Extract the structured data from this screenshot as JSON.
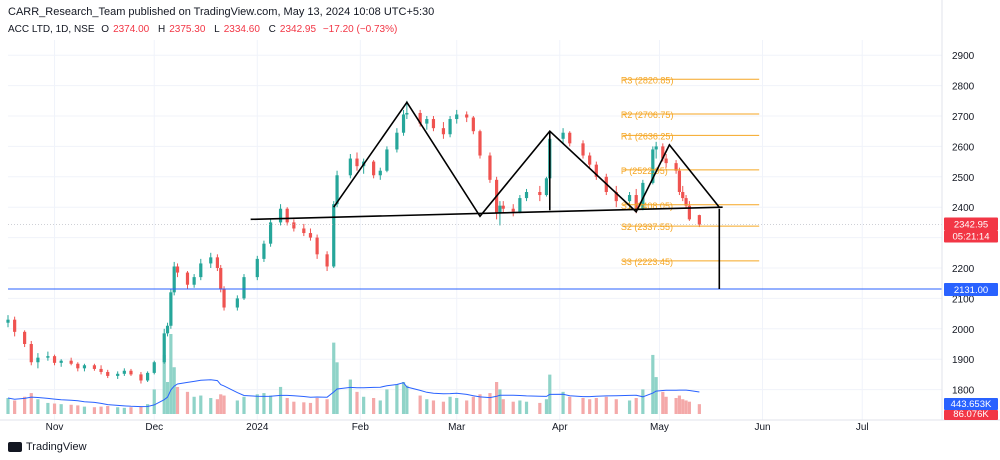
{
  "header": {
    "publisher": "CARR_Research_Team published on TradingView.com, May 13, 2024 10:08 UTC+5:30",
    "symbol": "ACC LTD, 1D, NSE",
    "o_label": "O",
    "o_value": "2374.00",
    "h_label": "H",
    "h_value": "2375.30",
    "l_label": "L",
    "l_value": "2334.60",
    "c_label": "C",
    "c_value": "2342.95",
    "change": "−17.20 (−0.73%)"
  },
  "footer": {
    "brand": "TradingView"
  },
  "colors": {
    "up": "#26a69a",
    "down": "#ef5350",
    "vol_up": "#8fd3c8",
    "vol_down": "#f4a9a9",
    "pivot": "#f5a623",
    "support": "#2962ff",
    "price_tag": "#f23645"
  },
  "chart_data": {
    "type": "candlestick",
    "ylim": [
      1700,
      2950
    ],
    "y_ticks": [
      1800,
      1900,
      2000,
      2100,
      2200,
      2300,
      2400,
      2500,
      2600,
      2700,
      2800,
      2900
    ],
    "x_tick_labels": [
      "Nov",
      "Dec",
      "2024",
      "Feb",
      "Mar",
      "Apr",
      "May",
      "Jun",
      "Jul"
    ],
    "x_tick_dates": [
      "2023-11-01",
      "2023-12-01",
      "2024-01-01",
      "2024-02-01",
      "2024-03-01",
      "2024-04-01",
      "2024-05-01",
      "2024-06-01",
      "2024-07-01"
    ],
    "x_range": [
      "2023-10-18",
      "2024-07-25"
    ],
    "last_price_label": "2342.95",
    "countdown_label": "05:21:14",
    "support_level": 2131.0,
    "support_label": "2131.00",
    "volume_label": "443.653K",
    "volume_ma_label": "86.076K",
    "pivots": [
      {
        "name": "R3",
        "label": "R3 (2820.85)",
        "value": 2820.85
      },
      {
        "name": "R2",
        "label": "R2 (2706.75)",
        "value": 2706.75
      },
      {
        "name": "R1",
        "label": "R1 (2636.25)",
        "value": 2636.25
      },
      {
        "name": "P",
        "label": "P (2522.95)",
        "value": 2522.95
      },
      {
        "name": "S1",
        "label": "S1 (2408.05)",
        "value": 2408.05
      },
      {
        "name": "S2",
        "label": "S2 (2337.55)",
        "value": 2337.55
      },
      {
        "name": "S3",
        "label": "S3 (2223.45)",
        "value": 2223.45
      }
    ],
    "pivot_range": [
      "2024-04-20",
      "2024-05-31"
    ],
    "neckline": [
      {
        "x": "2023-12-30",
        "y": 2360
      },
      {
        "x": "2024-05-20",
        "y": 2400
      }
    ],
    "pattern_line": [
      {
        "x": "2024-01-24",
        "y": 2400
      },
      {
        "x": "2024-02-15",
        "y": 2745
      },
      {
        "x": "2024-03-08",
        "y": 2370
      },
      {
        "x": "2024-03-29",
        "y": 2650
      },
      {
        "x": "2024-04-24",
        "y": 2385
      },
      {
        "x": "2024-05-04",
        "y": 2605
      },
      {
        "x": "2024-05-19",
        "y": 2400
      }
    ],
    "vertical_measures": [
      {
        "x": "2024-03-29",
        "y_top": 2650,
        "y_bottom": 2390
      },
      {
        "x": "2024-05-19",
        "y_top": 2395,
        "y_bottom": 2131
      }
    ],
    "series": [
      {
        "name": "ACC LTD",
        "kind": "ohlc",
        "points": [
          {
            "d": "2023-10-18",
            "o": 2020,
            "h": 2045,
            "l": 2005,
            "c": 2030,
            "v": 130
          },
          {
            "d": "2023-10-20",
            "o": 2030,
            "h": 2040,
            "l": 1975,
            "c": 1990,
            "v": 110
          },
          {
            "d": "2023-10-23",
            "o": 1990,
            "h": 1995,
            "l": 1940,
            "c": 1950,
            "v": 140
          },
          {
            "d": "2023-10-25",
            "o": 1950,
            "h": 1960,
            "l": 1880,
            "c": 1890,
            "v": 170
          },
          {
            "d": "2023-10-27",
            "o": 1890,
            "h": 1920,
            "l": 1870,
            "c": 1905,
            "v": 120
          },
          {
            "d": "2023-10-30",
            "o": 1905,
            "h": 1925,
            "l": 1895,
            "c": 1910,
            "v": 90
          },
          {
            "d": "2023-11-01",
            "o": 1910,
            "h": 1915,
            "l": 1880,
            "c": 1888,
            "v": 85
          },
          {
            "d": "2023-11-03",
            "o": 1888,
            "h": 1900,
            "l": 1875,
            "c": 1895,
            "v": 80
          },
          {
            "d": "2023-11-06",
            "o": 1895,
            "h": 1905,
            "l": 1880,
            "c": 1885,
            "v": 75
          },
          {
            "d": "2023-11-08",
            "o": 1885,
            "h": 1890,
            "l": 1860,
            "c": 1870,
            "v": 70
          },
          {
            "d": "2023-11-10",
            "o": 1870,
            "h": 1885,
            "l": 1860,
            "c": 1880,
            "v": 60
          },
          {
            "d": "2023-11-13",
            "o": 1880,
            "h": 1885,
            "l": 1862,
            "c": 1868,
            "v": 55
          },
          {
            "d": "2023-11-15",
            "o": 1868,
            "h": 1880,
            "l": 1850,
            "c": 1858,
            "v": 60
          },
          {
            "d": "2023-11-17",
            "o": 1858,
            "h": 1865,
            "l": 1838,
            "c": 1845,
            "v": 65
          },
          {
            "d": "2023-11-20",
            "o": 1845,
            "h": 1860,
            "l": 1835,
            "c": 1852,
            "v": 55
          },
          {
            "d": "2023-11-22",
            "o": 1852,
            "h": 1870,
            "l": 1845,
            "c": 1862,
            "v": 50
          },
          {
            "d": "2023-11-24",
            "o": 1862,
            "h": 1868,
            "l": 1845,
            "c": 1850,
            "v": 55
          },
          {
            "d": "2023-11-27",
            "o": 1850,
            "h": 1858,
            "l": 1820,
            "c": 1830,
            "v": 60
          },
          {
            "d": "2023-11-29",
            "o": 1830,
            "h": 1860,
            "l": 1825,
            "c": 1855,
            "v": 80
          },
          {
            "d": "2023-12-01",
            "o": 1855,
            "h": 1895,
            "l": 1850,
            "c": 1890,
            "v": 200
          },
          {
            "d": "2023-12-04",
            "o": 1890,
            "h": 2000,
            "l": 1885,
            "c": 1985,
            "v": 480
          },
          {
            "d": "2023-12-05",
            "o": 1985,
            "h": 2020,
            "l": 1975,
            "c": 2010,
            "v": 260
          },
          {
            "d": "2023-12-06",
            "o": 2010,
            "h": 2130,
            "l": 2000,
            "c": 2120,
            "v": 650
          },
          {
            "d": "2023-12-07",
            "o": 2120,
            "h": 2220,
            "l": 2110,
            "c": 2205,
            "v": 380
          },
          {
            "d": "2023-12-08",
            "o": 2205,
            "h": 2215,
            "l": 2170,
            "c": 2185,
            "v": 220
          },
          {
            "d": "2023-12-11",
            "o": 2185,
            "h": 2190,
            "l": 2130,
            "c": 2145,
            "v": 180
          },
          {
            "d": "2023-12-13",
            "o": 2145,
            "h": 2180,
            "l": 2135,
            "c": 2170,
            "v": 140
          },
          {
            "d": "2023-12-15",
            "o": 2170,
            "h": 2230,
            "l": 2160,
            "c": 2215,
            "v": 150
          },
          {
            "d": "2023-12-18",
            "o": 2215,
            "h": 2250,
            "l": 2200,
            "c": 2235,
            "v": 130
          },
          {
            "d": "2023-12-20",
            "o": 2235,
            "h": 2245,
            "l": 2190,
            "c": 2200,
            "v": 120
          },
          {
            "d": "2023-12-21",
            "o": 2200,
            "h": 2210,
            "l": 2120,
            "c": 2130,
            "v": 160
          },
          {
            "d": "2023-12-22",
            "o": 2130,
            "h": 2140,
            "l": 2060,
            "c": 2070,
            "v": 150
          },
          {
            "d": "2023-12-26",
            "o": 2070,
            "h": 2110,
            "l": 2060,
            "c": 2100,
            "v": 110
          },
          {
            "d": "2023-12-28",
            "o": 2100,
            "h": 2180,
            "l": 2095,
            "c": 2170,
            "v": 140
          },
          {
            "d": "2024-01-01",
            "o": 2170,
            "h": 2240,
            "l": 2160,
            "c": 2230,
            "v": 160
          },
          {
            "d": "2024-01-03",
            "o": 2230,
            "h": 2290,
            "l": 2220,
            "c": 2280,
            "v": 170
          },
          {
            "d": "2024-01-05",
            "o": 2280,
            "h": 2360,
            "l": 2270,
            "c": 2350,
            "v": 150
          },
          {
            "d": "2024-01-08",
            "o": 2350,
            "h": 2410,
            "l": 2340,
            "c": 2395,
            "v": 220
          },
          {
            "d": "2024-01-10",
            "o": 2395,
            "h": 2400,
            "l": 2340,
            "c": 2350,
            "v": 130
          },
          {
            "d": "2024-01-12",
            "o": 2350,
            "h": 2360,
            "l": 2320,
            "c": 2330,
            "v": 100
          },
          {
            "d": "2024-01-15",
            "o": 2330,
            "h": 2345,
            "l": 2305,
            "c": 2315,
            "v": 95
          },
          {
            "d": "2024-01-17",
            "o": 2315,
            "h": 2330,
            "l": 2290,
            "c": 2300,
            "v": 90
          },
          {
            "d": "2024-01-19",
            "o": 2300,
            "h": 2310,
            "l": 2230,
            "c": 2245,
            "v": 130
          },
          {
            "d": "2024-01-22",
            "o": 2245,
            "h": 2255,
            "l": 2190,
            "c": 2205,
            "v": 120
          },
          {
            "d": "2024-01-24",
            "o": 2205,
            "h": 2420,
            "l": 2200,
            "c": 2410,
            "v": 580
          },
          {
            "d": "2024-01-25",
            "o": 2410,
            "h": 2520,
            "l": 2400,
            "c": 2505,
            "v": 420
          },
          {
            "d": "2024-01-29",
            "o": 2505,
            "h": 2575,
            "l": 2495,
            "c": 2560,
            "v": 280
          },
          {
            "d": "2024-01-31",
            "o": 2560,
            "h": 2580,
            "l": 2520,
            "c": 2535,
            "v": 180
          },
          {
            "d": "2024-02-02",
            "o": 2535,
            "h": 2560,
            "l": 2510,
            "c": 2550,
            "v": 140
          },
          {
            "d": "2024-02-05",
            "o": 2550,
            "h": 2555,
            "l": 2495,
            "c": 2505,
            "v": 130
          },
          {
            "d": "2024-02-07",
            "o": 2505,
            "h": 2530,
            "l": 2490,
            "c": 2520,
            "v": 110
          },
          {
            "d": "2024-02-09",
            "o": 2520,
            "h": 2600,
            "l": 2515,
            "c": 2590,
            "v": 200
          },
          {
            "d": "2024-02-12",
            "o": 2590,
            "h": 2660,
            "l": 2580,
            "c": 2645,
            "v": 240
          },
          {
            "d": "2024-02-14",
            "o": 2645,
            "h": 2720,
            "l": 2635,
            "c": 2705,
            "v": 260
          },
          {
            "d": "2024-02-15",
            "o": 2705,
            "h": 2750,
            "l": 2690,
            "c": 2710,
            "v": 230
          },
          {
            "d": "2024-02-19",
            "o": 2710,
            "h": 2720,
            "l": 2665,
            "c": 2675,
            "v": 150
          },
          {
            "d": "2024-02-21",
            "o": 2675,
            "h": 2700,
            "l": 2655,
            "c": 2690,
            "v": 120
          },
          {
            "d": "2024-02-23",
            "o": 2690,
            "h": 2700,
            "l": 2650,
            "c": 2660,
            "v": 110
          },
          {
            "d": "2024-02-26",
            "o": 2660,
            "h": 2680,
            "l": 2625,
            "c": 2640,
            "v": 100
          },
          {
            "d": "2024-02-28",
            "o": 2640,
            "h": 2700,
            "l": 2630,
            "c": 2690,
            "v": 140
          },
          {
            "d": "2024-03-01",
            "o": 2690,
            "h": 2720,
            "l": 2675,
            "c": 2705,
            "v": 130
          },
          {
            "d": "2024-03-04",
            "o": 2705,
            "h": 2715,
            "l": 2680,
            "c": 2695,
            "v": 110
          },
          {
            "d": "2024-03-06",
            "o": 2695,
            "h": 2700,
            "l": 2640,
            "c": 2650,
            "v": 140
          },
          {
            "d": "2024-03-08",
            "o": 2650,
            "h": 2655,
            "l": 2560,
            "c": 2570,
            "v": 160
          },
          {
            "d": "2024-03-11",
            "o": 2570,
            "h": 2580,
            "l": 2480,
            "c": 2490,
            "v": 170
          },
          {
            "d": "2024-03-13",
            "o": 2490,
            "h": 2500,
            "l": 2360,
            "c": 2380,
            "v": 260
          },
          {
            "d": "2024-03-14",
            "o": 2380,
            "h": 2420,
            "l": 2340,
            "c": 2405,
            "v": 200
          },
          {
            "d": "2024-03-15",
            "o": 2405,
            "h": 2420,
            "l": 2380,
            "c": 2395,
            "v": 120
          },
          {
            "d": "2024-03-18",
            "o": 2395,
            "h": 2410,
            "l": 2370,
            "c": 2385,
            "v": 100
          },
          {
            "d": "2024-03-20",
            "o": 2385,
            "h": 2440,
            "l": 2380,
            "c": 2430,
            "v": 110
          },
          {
            "d": "2024-03-22",
            "o": 2430,
            "h": 2460,
            "l": 2420,
            "c": 2450,
            "v": 100
          },
          {
            "d": "2024-03-26",
            "o": 2450,
            "h": 2470,
            "l": 2420,
            "c": 2440,
            "v": 90
          },
          {
            "d": "2024-03-28",
            "o": 2440,
            "h": 2500,
            "l": 2435,
            "c": 2495,
            "v": 120
          },
          {
            "d": "2024-03-29",
            "o": 2495,
            "h": 2640,
            "l": 2490,
            "c": 2625,
            "v": 320
          },
          {
            "d": "2024-04-02",
            "o": 2625,
            "h": 2660,
            "l": 2610,
            "c": 2645,
            "v": 180
          },
          {
            "d": "2024-04-04",
            "o": 2645,
            "h": 2650,
            "l": 2600,
            "c": 2610,
            "v": 140
          },
          {
            "d": "2024-04-08",
            "o": 2610,
            "h": 2620,
            "l": 2560,
            "c": 2570,
            "v": 130
          },
          {
            "d": "2024-04-10",
            "o": 2570,
            "h": 2580,
            "l": 2530,
            "c": 2540,
            "v": 120
          },
          {
            "d": "2024-04-12",
            "o": 2540,
            "h": 2550,
            "l": 2490,
            "c": 2500,
            "v": 130
          },
          {
            "d": "2024-04-15",
            "o": 2500,
            "h": 2510,
            "l": 2440,
            "c": 2450,
            "v": 140
          },
          {
            "d": "2024-04-18",
            "o": 2450,
            "h": 2470,
            "l": 2400,
            "c": 2420,
            "v": 120
          },
          {
            "d": "2024-04-22",
            "o": 2420,
            "h": 2450,
            "l": 2390,
            "c": 2440,
            "v": 110
          },
          {
            "d": "2024-04-24",
            "o": 2440,
            "h": 2460,
            "l": 2380,
            "c": 2395,
            "v": 130
          },
          {
            "d": "2024-04-26",
            "o": 2395,
            "h": 2490,
            "l": 2390,
            "c": 2480,
            "v": 200
          },
          {
            "d": "2024-04-29",
            "o": 2480,
            "h": 2600,
            "l": 2475,
            "c": 2590,
            "v": 480
          },
          {
            "d": "2024-04-30",
            "o": 2590,
            "h": 2615,
            "l": 2560,
            "c": 2600,
            "v": 300
          },
          {
            "d": "2024-05-02",
            "o": 2600,
            "h": 2610,
            "l": 2550,
            "c": 2560,
            "v": 180
          },
          {
            "d": "2024-05-03",
            "o": 2560,
            "h": 2575,
            "l": 2530,
            "c": 2545,
            "v": 140
          },
          {
            "d": "2024-05-06",
            "o": 2545,
            "h": 2555,
            "l": 2510,
            "c": 2520,
            "v": 130
          },
          {
            "d": "2024-05-07",
            "o": 2520,
            "h": 2530,
            "l": 2440,
            "c": 2450,
            "v": 150
          },
          {
            "d": "2024-05-08",
            "o": 2450,
            "h": 2470,
            "l": 2420,
            "c": 2430,
            "v": 120
          },
          {
            "d": "2024-05-09",
            "o": 2430,
            "h": 2440,
            "l": 2395,
            "c": 2405,
            "v": 110
          },
          {
            "d": "2024-05-10",
            "o": 2405,
            "h": 2420,
            "l": 2355,
            "c": 2360,
            "v": 100
          },
          {
            "d": "2024-05-13",
            "o": 2374,
            "h": 2375.3,
            "l": 2334.6,
            "c": 2342.95,
            "v": 80
          }
        ]
      }
    ]
  }
}
